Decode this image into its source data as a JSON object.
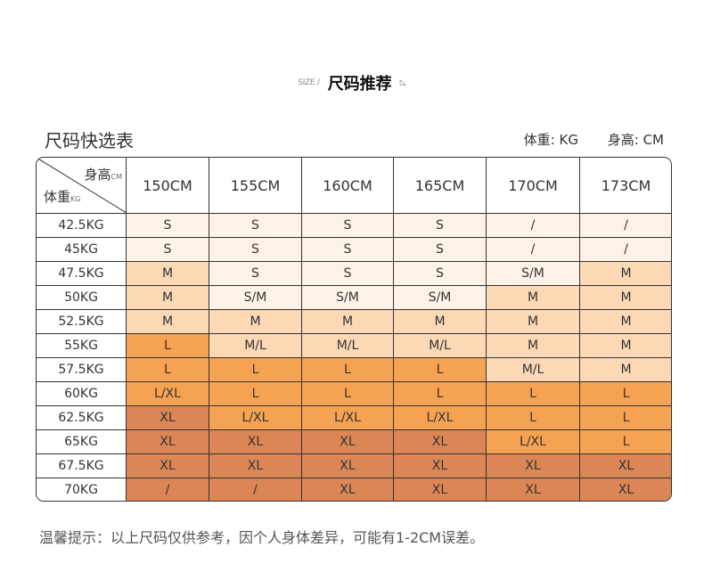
{
  "header": {
    "size_label": "SIZE /",
    "title": "尺码推荐",
    "icon": "cursor-icon"
  },
  "quick_title": "尺码快选表",
  "units": {
    "weight": "体重: KG",
    "height": "身高: CM"
  },
  "corner": {
    "height_label": "身高",
    "height_unit": "CM",
    "weight_label": "体重",
    "weight_unit": "KG"
  },
  "columns": [
    "150CM",
    "155CM",
    "160CM",
    "165CM",
    "170CM",
    "173CM"
  ],
  "colors": {
    "tier0": "#fdf2e8",
    "tier1": "#fcd8b5",
    "tier2": "#f5a352",
    "tier3": "#db8654"
  },
  "rows": [
    {
      "weight": "42.5KG",
      "cells": [
        "S",
        "S",
        "S",
        "S",
        "/",
        "/"
      ],
      "tiers": [
        0,
        0,
        0,
        0,
        0,
        0
      ]
    },
    {
      "weight": "45KG",
      "cells": [
        "S",
        "S",
        "S",
        "S",
        "/",
        "/"
      ],
      "tiers": [
        0,
        0,
        0,
        0,
        0,
        0
      ]
    },
    {
      "weight": "47.5KG",
      "cells": [
        "M",
        "S",
        "S",
        "S",
        "S/M",
        "M"
      ],
      "tiers": [
        1,
        0,
        0,
        0,
        0,
        1
      ]
    },
    {
      "weight": "50KG",
      "cells": [
        "M",
        "S/M",
        "S/M",
        "S/M",
        "M",
        "M"
      ],
      "tiers": [
        1,
        0,
        0,
        0,
        1,
        1
      ]
    },
    {
      "weight": "52.5KG",
      "cells": [
        "M",
        "M",
        "M",
        "M",
        "M",
        "M"
      ],
      "tiers": [
        1,
        1,
        1,
        1,
        1,
        1
      ]
    },
    {
      "weight": "55KG",
      "cells": [
        "L",
        "M/L",
        "M/L",
        "M/L",
        "M",
        "M"
      ],
      "tiers": [
        2,
        1,
        1,
        1,
        1,
        1
      ]
    },
    {
      "weight": "57.5KG",
      "cells": [
        "L",
        "L",
        "L",
        "L",
        "M/L",
        "M"
      ],
      "tiers": [
        2,
        2,
        2,
        2,
        1,
        1
      ]
    },
    {
      "weight": "60KG",
      "cells": [
        "L/XL",
        "L",
        "L",
        "L",
        "L",
        "L"
      ],
      "tiers": [
        2,
        2,
        2,
        2,
        2,
        2
      ]
    },
    {
      "weight": "62.5KG",
      "cells": [
        "XL",
        "L/XL",
        "L/XL",
        "L/XL",
        "L",
        "L"
      ],
      "tiers": [
        3,
        2,
        2,
        2,
        2,
        2
      ]
    },
    {
      "weight": "65KG",
      "cells": [
        "XL",
        "XL",
        "XL",
        "XL",
        "L/XL",
        "L"
      ],
      "tiers": [
        3,
        3,
        3,
        3,
        2,
        2
      ]
    },
    {
      "weight": "67.5KG",
      "cells": [
        "XL",
        "XL",
        "XL",
        "XL",
        "XL",
        "XL"
      ],
      "tiers": [
        3,
        3,
        3,
        3,
        3,
        3
      ]
    },
    {
      "weight": "70KG",
      "cells": [
        "/",
        "/",
        "XL",
        "XL",
        "XL",
        "XL"
      ],
      "tiers": [
        3,
        3,
        3,
        3,
        3,
        3
      ]
    }
  ],
  "tip": "温馨提示：以上尺码仅供参考，因个人身体差异，可能有1-2CM误差。"
}
